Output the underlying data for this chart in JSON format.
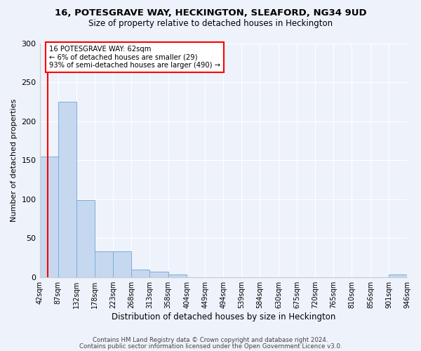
{
  "title": "16, POTESGRAVE WAY, HECKINGTON, SLEAFORD, NG34 9UD",
  "subtitle": "Size of property relative to detached houses in Heckington",
  "xlabel": "Distribution of detached houses by size in Heckington",
  "ylabel": "Number of detached properties",
  "bar_color": "#c5d8f0",
  "bar_edge_color": "#7bafd4",
  "bin_edges": [
    42,
    87,
    132,
    178,
    223,
    268,
    313,
    358,
    404,
    449,
    494,
    539,
    584,
    630,
    675,
    720,
    765,
    810,
    856,
    901,
    946
  ],
  "bin_labels": [
    "42sqm",
    "87sqm",
    "132sqm",
    "178sqm",
    "223sqm",
    "268sqm",
    "313sqm",
    "358sqm",
    "404sqm",
    "449sqm",
    "494sqm",
    "539sqm",
    "584sqm",
    "630sqm",
    "675sqm",
    "720sqm",
    "765sqm",
    "810sqm",
    "856sqm",
    "901sqm",
    "946sqm"
  ],
  "bar_heights": [
    155,
    225,
    99,
    33,
    33,
    10,
    7,
    3,
    0,
    0,
    0,
    0,
    0,
    0,
    0,
    0,
    0,
    0,
    0,
    3
  ],
  "ylim": [
    0,
    300
  ],
  "yticks": [
    0,
    50,
    100,
    150,
    200,
    250,
    300
  ],
  "red_line_x": 62,
  "annotation_title": "16 POTESGRAVE WAY: 62sqm",
  "annotation_line1": "← 6% of detached houses are smaller (29)",
  "annotation_line2": "93% of semi-detached houses are larger (490) →",
  "footer_line1": "Contains HM Land Registry data © Crown copyright and database right 2024.",
  "footer_line2": "Contains public sector information licensed under the Open Government Licence v3.0.",
  "background_color": "#eef2fb",
  "plot_bg_color": "#eef2fb"
}
